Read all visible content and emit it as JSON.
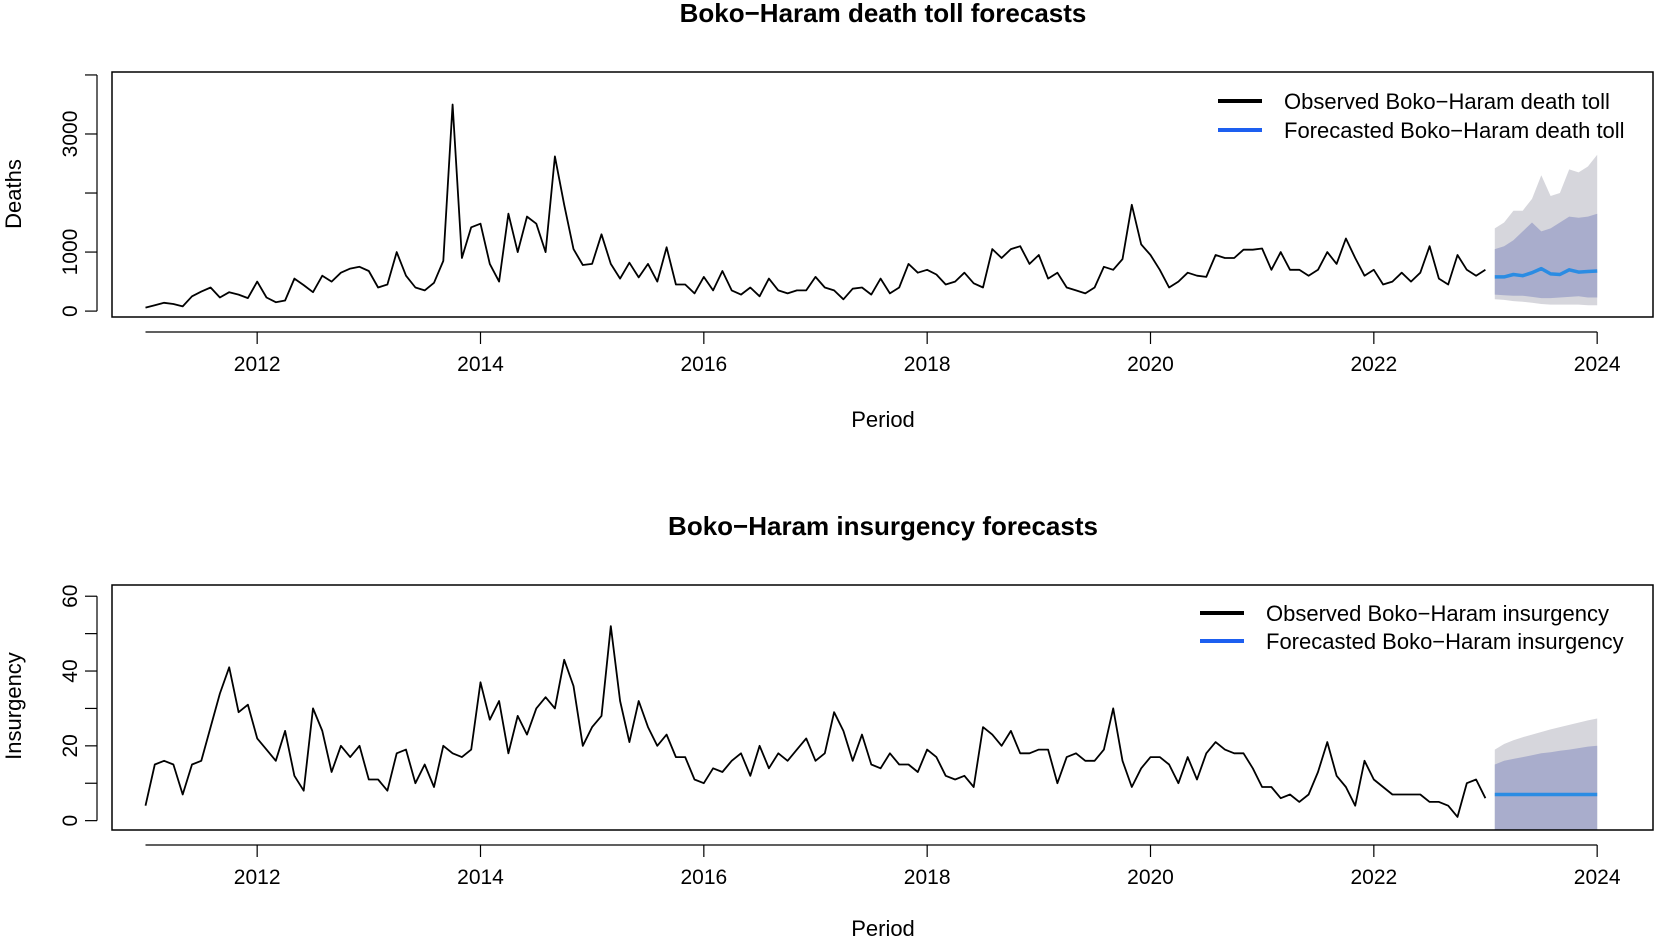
{
  "chart_data": [
    {
      "type": "line",
      "title": "Boko−Haram death toll forecasts",
      "xlabel": "Period",
      "ylabel": "Deaths",
      "xlim": [
        2010.7,
        2024.5
      ],
      "ylim": [
        -100,
        4050
      ],
      "xticks": [
        2012,
        2014,
        2016,
        2018,
        2020,
        2022,
        2024
      ],
      "xtick_labels": [
        "2012",
        "2014",
        "2016",
        "2018",
        "2020",
        "2022",
        "2024"
      ],
      "yticks": [
        0,
        1000,
        3000
      ],
      "ytick_labels": [
        "0",
        "1000",
        "3000"
      ],
      "yticks_minor": [
        0,
        1000,
        2000,
        3000,
        4000
      ],
      "grid": false,
      "legend_position": "top-right",
      "colors": {
        "observed": "#000000",
        "forecast": "#2b8ce3",
        "band80": "#a9adcc",
        "band95": "#d6d6dc"
      },
      "series": [
        {
          "name": "Observed Boko−Haram death toll",
          "x_start": 2011.0,
          "x_step": 0.08333,
          "values": [
            60,
            100,
            140,
            120,
            80,
            250,
            330,
            400,
            230,
            320,
            280,
            220,
            500,
            230,
            150,
            180,
            550,
            440,
            320,
            600,
            500,
            650,
            720,
            750,
            680,
            400,
            450,
            1000,
            600,
            400,
            350,
            480,
            850,
            3500,
            900,
            1420,
            1480,
            800,
            500,
            1650,
            1000,
            1600,
            1480,
            1000,
            2620,
            1800,
            1050,
            780,
            800,
            1300,
            800,
            550,
            820,
            570,
            800,
            500,
            1080,
            450,
            450,
            300,
            580,
            350,
            680,
            350,
            280,
            400,
            250,
            550,
            350,
            300,
            350,
            350,
            580,
            400,
            350,
            200,
            380,
            400,
            280,
            550,
            300,
            400,
            800,
            650,
            700,
            620,
            450,
            500,
            650,
            470,
            400,
            1050,
            900,
            1050,
            1100,
            800,
            950,
            550,
            650,
            400,
            350,
            300,
            400,
            750,
            700,
            880,
            1800,
            1130,
            950,
            700,
            400,
            500,
            650,
            600,
            580,
            950,
            900,
            900,
            1040,
            1040,
            1060,
            700,
            1000,
            700,
            700,
            600,
            700,
            1000,
            800,
            1230,
            900,
            600,
            700,
            450,
            500,
            650,
            500,
            650,
            1100,
            550,
            450,
            950,
            700,
            600,
            700
          ]
        },
        {
          "name": "Forecasted Boko−Haram death toll",
          "x_start": 2023.08333,
          "x_step": 0.08333,
          "values": [
            580,
            580,
            620,
            600,
            650,
            720,
            630,
            620,
            700,
            660,
            670,
            680
          ],
          "lower80": [
            280,
            270,
            260,
            260,
            240,
            220,
            220,
            230,
            240,
            250,
            230,
            230
          ],
          "upper80": [
            1050,
            1100,
            1200,
            1350,
            1500,
            1350,
            1400,
            1500,
            1600,
            1580,
            1600,
            1650
          ],
          "lower95": [
            200,
            190,
            170,
            160,
            140,
            120,
            110,
            110,
            110,
            110,
            100,
            100
          ],
          "upper95": [
            1400,
            1500,
            1700,
            1700,
            1900,
            2300,
            1950,
            2000,
            2400,
            2350,
            2450,
            2650
          ]
        }
      ]
    },
    {
      "type": "line",
      "title": "Boko−Haram insurgency forecasts",
      "xlabel": "Period",
      "ylabel": "Insurgency",
      "xlim": [
        2010.7,
        2024.5
      ],
      "ylim": [
        -2.5,
        63
      ],
      "xticks": [
        2012,
        2014,
        2016,
        2018,
        2020,
        2022,
        2024
      ],
      "xtick_labels": [
        "2012",
        "2014",
        "2016",
        "2018",
        "2020",
        "2022",
        "2024"
      ],
      "yticks": [
        0,
        20,
        40,
        60
      ],
      "ytick_labels": [
        "0",
        "20",
        "40",
        "60"
      ],
      "yticks_minor": [
        0,
        10,
        20,
        30,
        40,
        50,
        60
      ],
      "grid": false,
      "legend_position": "top-right",
      "colors": {
        "observed": "#000000",
        "forecast": "#2b8ce3",
        "band80": "#a9adcc",
        "band95": "#d6d6dc"
      },
      "series": [
        {
          "name": "Observed Boko−Haram insurgency",
          "x_start": 2011.0,
          "x_step": 0.08333,
          "values": [
            4,
            15,
            16,
            15,
            7,
            15,
            16,
            25,
            34,
            41,
            29,
            31,
            22,
            19,
            16,
            24,
            12,
            8,
            30,
            24,
            13,
            20,
            17,
            20,
            11,
            11,
            8,
            18,
            19,
            10,
            15,
            9,
            20,
            18,
            17,
            19,
            37,
            27,
            32,
            18,
            28,
            23,
            30,
            33,
            30,
            43,
            36,
            20,
            25,
            28,
            52,
            32,
            21,
            32,
            25,
            20,
            23,
            17,
            17,
            11,
            10,
            14,
            13,
            16,
            18,
            12,
            20,
            14,
            18,
            16,
            19,
            22,
            16,
            18,
            29,
            24,
            16,
            23,
            15,
            14,
            18,
            15,
            15,
            13,
            19,
            17,
            12,
            11,
            12,
            9,
            25,
            23,
            20,
            24,
            18,
            18,
            19,
            19,
            10,
            17,
            18,
            16,
            16,
            19,
            30,
            16,
            9,
            14,
            17,
            17,
            15,
            10,
            17,
            11,
            18,
            21,
            19,
            18,
            18,
            14,
            9,
            9,
            6,
            7,
            5,
            7,
            13,
            21,
            12,
            9,
            4,
            16,
            11,
            9,
            7,
            7,
            7,
            7,
            5,
            5,
            4,
            1,
            10,
            11,
            6
          ]
        },
        {
          "name": "Forecasted Boko−Haram insurgency",
          "x_start": 2023.08333,
          "x_step": 0.08333,
          "values": [
            7,
            7,
            7,
            7,
            7,
            7,
            7,
            7,
            7,
            7,
            7,
            7
          ],
          "lower80": [
            -2.5,
            -2.5,
            -2.5,
            -2.5,
            -2.5,
            -2.5,
            -2.5,
            -2.5,
            -2.5,
            -2.5,
            -2.5,
            -2.5
          ],
          "upper80": [
            15,
            16,
            16.5,
            17,
            17.5,
            18,
            18.3,
            18.7,
            19,
            19.4,
            19.8,
            20
          ],
          "lower95": [
            -2.5,
            -2.5,
            -2.5,
            -2.5,
            -2.5,
            -2.5,
            -2.5,
            -2.5,
            -2.5,
            -2.5,
            -2.5,
            -2.5
          ],
          "upper95": [
            19,
            20.5,
            21.5,
            22.3,
            23,
            23.7,
            24.4,
            25,
            25.6,
            26.2,
            26.8,
            27.3
          ]
        }
      ]
    }
  ]
}
